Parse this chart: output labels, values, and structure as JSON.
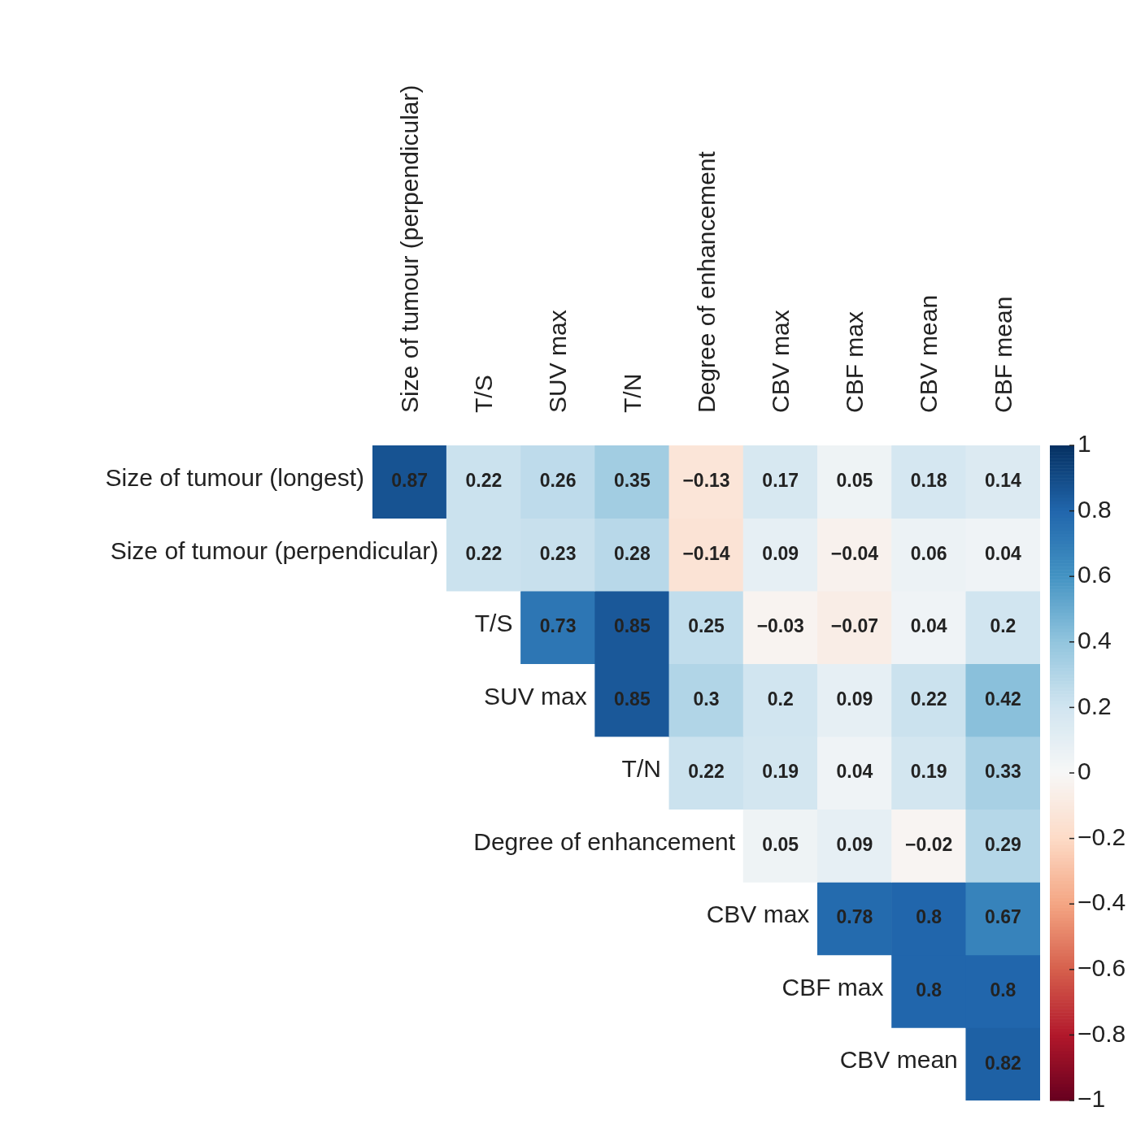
{
  "chart_data": {
    "type": "heatmap",
    "categories": [
      "Size of tumour (perpendicular)",
      "T/S",
      "SUV max",
      "T/N",
      "Degree of enhancement",
      "CBV max",
      "CBF max",
      "CBV mean",
      "CBF mean"
    ],
    "y_categories": [
      "Size of tumour (longest)",
      "Size of tumour (perpendicular)",
      "T/S",
      "SUV max",
      "T/N",
      "Degree of enhancement",
      "CBV max",
      "CBF max",
      "CBV mean"
    ],
    "cells": [
      [
        0.87,
        0.22,
        0.26,
        0.35,
        -0.13,
        0.17,
        0.05,
        0.18,
        0.14
      ],
      [
        null,
        0.22,
        0.23,
        0.28,
        -0.14,
        0.09,
        -0.04,
        0.06,
        0.04
      ],
      [
        null,
        null,
        0.73,
        0.85,
        0.25,
        -0.03,
        -0.07,
        0.04,
        0.2
      ],
      [
        null,
        null,
        null,
        0.85,
        0.3,
        0.2,
        0.09,
        0.22,
        0.42
      ],
      [
        null,
        null,
        null,
        null,
        0.22,
        0.19,
        0.04,
        0.19,
        0.33
      ],
      [
        null,
        null,
        null,
        null,
        null,
        0.05,
        0.09,
        -0.02,
        0.29
      ],
      [
        null,
        null,
        null,
        null,
        null,
        null,
        0.78,
        0.8,
        0.67
      ],
      [
        null,
        null,
        null,
        null,
        null,
        null,
        null,
        0.8,
        0.8
      ],
      [
        null,
        null,
        null,
        null,
        null,
        null,
        null,
        null,
        0.82
      ]
    ],
    "data_labels": true,
    "clim": [
      -1,
      1
    ],
    "cticks": [
      -1,
      -0.8,
      -0.6,
      -0.4,
      -0.2,
      0,
      0.2,
      0.4,
      0.6,
      0.8,
      1
    ]
  }
}
